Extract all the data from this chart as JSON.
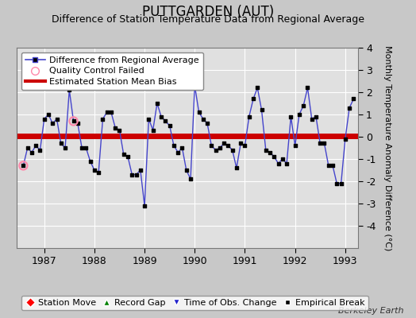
{
  "title": "PUTTGARDEN (AUT)",
  "subtitle": "Difference of Station Temperature Data from Regional Average",
  "ylabel": "Monthly Temperature Anomaly Difference (°C)",
  "bias": 0.05,
  "xlim_start": 1986.45,
  "xlim_end": 1993.25,
  "ylim": [
    -5,
    4
  ],
  "yticks": [
    -4,
    -3,
    -2,
    -1,
    0,
    1,
    2,
    3,
    4
  ],
  "background_color": "#c8c8c8",
  "plot_bg_color": "#e0e0e0",
  "grid_color": "#ffffff",
  "line_color": "#4444cc",
  "marker_color": "#000000",
  "bias_color": "#cc0000",
  "qc_fail_color": "#ff88aa",
  "watermark": "Berkeley Earth",
  "months": [
    1986.583,
    1986.667,
    1986.75,
    1986.833,
    1986.917,
    1987.0,
    1987.083,
    1987.167,
    1987.25,
    1987.333,
    1987.417,
    1987.5,
    1987.583,
    1987.667,
    1987.75,
    1987.833,
    1987.917,
    1988.0,
    1988.083,
    1988.167,
    1988.25,
    1988.333,
    1988.417,
    1988.5,
    1988.583,
    1988.667,
    1988.75,
    1988.833,
    1988.917,
    1989.0,
    1989.083,
    1989.167,
    1989.25,
    1989.333,
    1989.417,
    1989.5,
    1989.583,
    1989.667,
    1989.75,
    1989.833,
    1989.917,
    1990.0,
    1990.083,
    1990.167,
    1990.25,
    1990.333,
    1990.417,
    1990.5,
    1990.583,
    1990.667,
    1990.75,
    1990.833,
    1990.917,
    1991.0,
    1991.083,
    1991.167,
    1991.25,
    1991.333,
    1991.417,
    1991.5,
    1991.583,
    1991.667,
    1991.75,
    1991.833,
    1991.917,
    1992.0,
    1992.083,
    1992.167,
    1992.25,
    1992.333,
    1992.417,
    1992.5,
    1992.583,
    1992.667,
    1992.75,
    1992.833,
    1992.917,
    1993.0,
    1993.083,
    1993.167
  ],
  "values": [
    -1.3,
    -0.5,
    -0.7,
    -0.4,
    -0.6,
    0.8,
    1.0,
    0.6,
    0.8,
    -0.3,
    -0.5,
    2.1,
    0.7,
    0.6,
    -0.5,
    -0.5,
    -1.1,
    -1.5,
    -1.6,
    0.8,
    1.1,
    1.1,
    0.4,
    0.3,
    -0.8,
    -0.9,
    -1.7,
    -1.7,
    -1.5,
    -3.1,
    0.8,
    0.3,
    1.5,
    0.9,
    0.7,
    0.5,
    -0.4,
    -0.7,
    -0.5,
    -1.5,
    -1.9,
    2.3,
    1.1,
    0.8,
    0.6,
    -0.4,
    -0.6,
    -0.5,
    -0.3,
    -0.4,
    -0.6,
    -1.4,
    -0.3,
    -0.4,
    0.9,
    1.7,
    2.2,
    1.2,
    -0.6,
    -0.7,
    -0.9,
    -1.2,
    -1.0,
    -1.2,
    0.9,
    -0.4,
    1.0,
    1.4,
    2.2,
    0.8,
    0.9,
    -0.3,
    -0.3,
    -1.3,
    -1.3,
    -2.1,
    -2.1,
    -0.1,
    1.3,
    1.7
  ],
  "qc_fail_indices": [
    0,
    12
  ],
  "xtick_positions": [
    1987,
    1988,
    1989,
    1990,
    1991,
    1992,
    1993
  ],
  "title_fontsize": 12,
  "subtitle_fontsize": 9,
  "tick_fontsize": 9,
  "legend_fontsize": 8
}
